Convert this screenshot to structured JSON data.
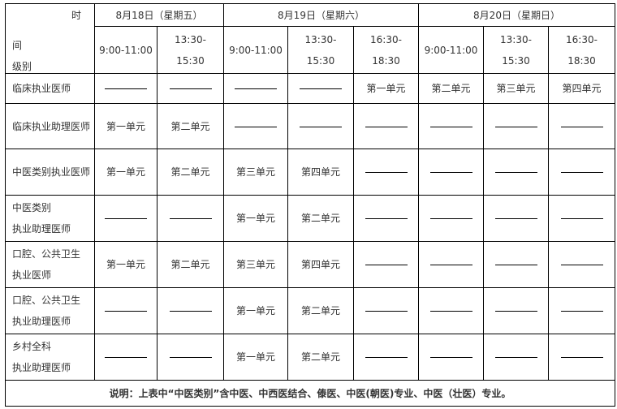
{
  "header": {
    "corner": {
      "top": "时",
      "mid": "间",
      "bottom": "级别"
    },
    "dates": [
      "8月18日（星期五）",
      "8月19日（星期六）",
      "8月20日（星期日）"
    ],
    "slots": [
      "9:00-11:00",
      "13:30-\n15:30",
      "9:00-11:00",
      "13:30-\n15:30",
      "16:30-\n18:30",
      "9:00-11:00",
      "13:30-\n15:30",
      "16:30-\n18:30"
    ]
  },
  "rows": [
    {
      "level": "临床执业医师",
      "cells": [
        "",
        "",
        "",
        "",
        "第一单元",
        "第二单元",
        "第三单元",
        "第四单元"
      ]
    },
    {
      "level": "临床执业助理医师",
      "cells": [
        "第一单元",
        "第二单元",
        "",
        "",
        "",
        "",
        "",
        ""
      ]
    },
    {
      "level": "中医类别执业医师",
      "cells": [
        "第一单元",
        "第二单元",
        "第三单元",
        "第四单元",
        "",
        "",
        "",
        ""
      ]
    },
    {
      "level": "中医类别\n执业助理医师",
      "cells": [
        "",
        "",
        "第一单元",
        "第二单元",
        "",
        "",
        "",
        ""
      ]
    },
    {
      "level": "口腔、公共卫生\n执业医师",
      "cells": [
        "第一单元",
        "第二单元",
        "第三单元",
        "第四单元",
        "",
        "",
        "",
        ""
      ]
    },
    {
      "level": "口腔、公共卫生\n执业助理医师",
      "cells": [
        "",
        "",
        "第一单元",
        "第二单元",
        "",
        "",
        "",
        ""
      ]
    },
    {
      "level": "乡村全科\n执业助理医师",
      "cells": [
        "",
        "",
        "第一单元",
        "第二单元",
        "",
        "",
        "",
        ""
      ]
    }
  ],
  "note": "说明：上表中“中医类别”含中医、中西医结合、傣医、中医(朝医)专业、中医（壮医）专业。"
}
